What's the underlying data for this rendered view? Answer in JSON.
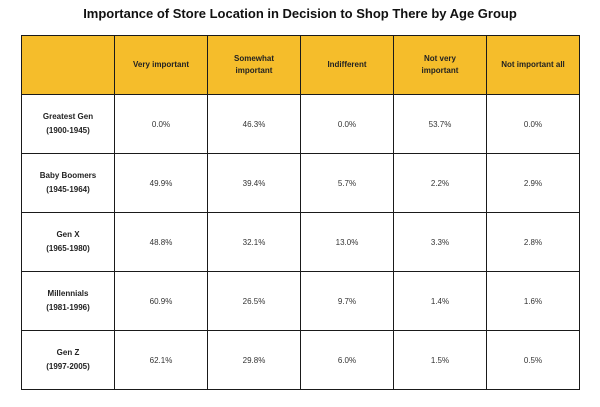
{
  "chart_data": {
    "type": "table",
    "title": "Importance of Store Location in Decision to Shop There by Age Group",
    "columns": [
      "",
      "Very important",
      "Somewhat important",
      "Indifferent",
      "Not very important",
      "Not important all"
    ],
    "header_color": "#f5bd2b",
    "rows": [
      {
        "name": "Greatest Gen",
        "years": "(1900-1945)",
        "values": [
          "0.0%",
          "46.3%",
          "0.0%",
          "53.7%",
          "0.0%"
        ]
      },
      {
        "name": "Baby Boomers",
        "years": "(1945-1964)",
        "values": [
          "49.9%",
          "39.4%",
          "5.7%",
          "2.2%",
          "2.9%"
        ]
      },
      {
        "name": "Gen X",
        "years": "(1965-1980)",
        "values": [
          "48.8%",
          "32.1%",
          "13.0%",
          "3.3%",
          "2.8%"
        ]
      },
      {
        "name": "Millennials",
        "years": "(1981-1996)",
        "values": [
          "60.9%",
          "26.5%",
          "9.7%",
          "1.4%",
          "1.6%"
        ]
      },
      {
        "name": "Gen Z",
        "years": "(1997-2005)",
        "values": [
          "62.1%",
          "29.8%",
          "6.0%",
          "1.5%",
          "0.5%"
        ]
      }
    ]
  }
}
